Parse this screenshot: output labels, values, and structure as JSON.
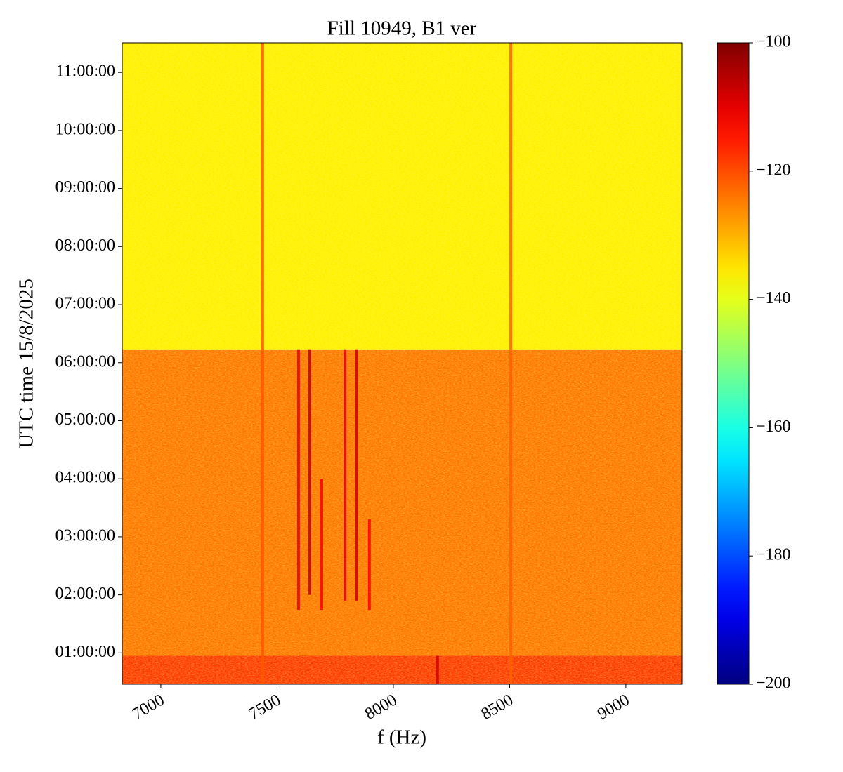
{
  "chart_data": {
    "type": "heatmap",
    "title": "Fill 10949, B1 ver",
    "xlabel": "f (Hz)",
    "ylabel": "UTC time 15/8/2025",
    "colormap": "jet",
    "xlim": [
      6834,
      9242
    ],
    "xticks": [
      7000,
      7500,
      8000,
      8500,
      9000
    ],
    "ylim": [
      0.46,
      11.51
    ],
    "yticks": [
      {
        "value": 1,
        "label": "01:00:00"
      },
      {
        "value": 2,
        "label": "02:00:00"
      },
      {
        "value": 3,
        "label": "03:00:00"
      },
      {
        "value": 4,
        "label": "04:00:00"
      },
      {
        "value": 5,
        "label": "05:00:00"
      },
      {
        "value": 6,
        "label": "06:00:00"
      },
      {
        "value": 7,
        "label": "07:00:00"
      },
      {
        "value": 8,
        "label": "08:00:00"
      },
      {
        "value": 9,
        "label": "09:00:00"
      },
      {
        "value": 10,
        "label": "10:00:00"
      },
      {
        "value": 11,
        "label": "11:00:00"
      }
    ],
    "clim": [
      -200,
      -100
    ],
    "cticks": [
      {
        "value": -200,
        "label": "−200"
      },
      {
        "value": -180,
        "label": "−180"
      },
      {
        "value": -160,
        "label": "−160"
      },
      {
        "value": -140,
        "label": "−140"
      },
      {
        "value": -120,
        "label": "−120"
      },
      {
        "value": -100,
        "label": "−100"
      }
    ],
    "bands": [
      {
        "from": 0.46,
        "to": 0.95,
        "value": -118
      },
      {
        "from": 0.95,
        "to": 6.23,
        "value": -124
      },
      {
        "from": 6.23,
        "to": 11.51,
        "value": -136
      }
    ],
    "lines": [
      {
        "f": 7438,
        "t0": 0.46,
        "t1": 11.51,
        "value": -121
      },
      {
        "f": 8505,
        "t0": 0.46,
        "t1": 11.51,
        "value": -122
      },
      {
        "f": 7592,
        "t0": 1.74,
        "t1": 6.23,
        "value": -110
      },
      {
        "f": 7640,
        "t0": 2.0,
        "t1": 6.23,
        "value": -106
      },
      {
        "f": 7692,
        "t0": 1.74,
        "t1": 4.0,
        "value": -112
      },
      {
        "f": 7792,
        "t0": 1.9,
        "t1": 6.23,
        "value": -110
      },
      {
        "f": 7843,
        "t0": 1.9,
        "t1": 6.23,
        "value": -107
      },
      {
        "f": 7897,
        "t0": 1.74,
        "t1": 3.3,
        "value": -112
      },
      {
        "f": 8190,
        "t0": 0.46,
        "t1": 0.95,
        "value": -108
      }
    ]
  }
}
